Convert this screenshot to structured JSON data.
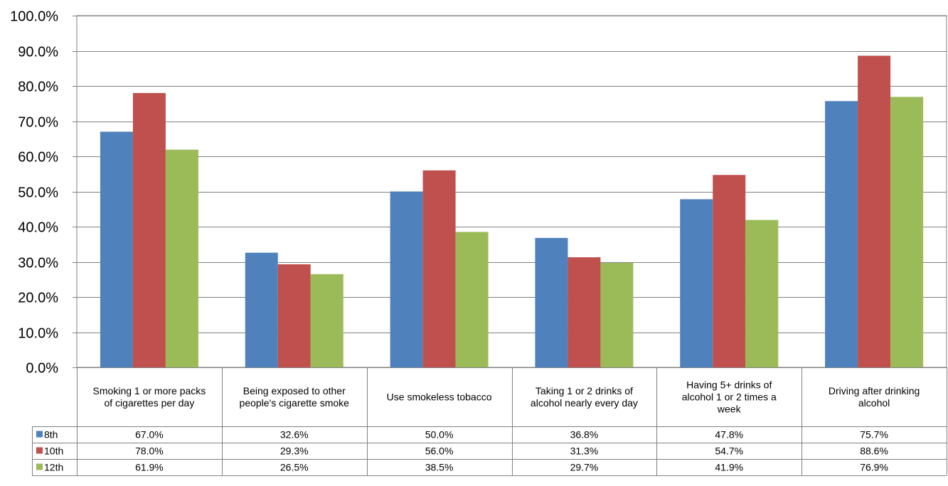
{
  "chart_data": {
    "type": "bar",
    "categories": [
      [
        "Smoking 1 or more packs",
        "of cigarettes per day"
      ],
      [
        "Being exposed to other",
        "people's cigarette smoke"
      ],
      [
        "Use smokeless tobacco"
      ],
      [
        "Taking 1 or 2 drinks of",
        "alcohol nearly every day"
      ],
      [
        "Having 5+ drinks of",
        "alcohol 1 or 2 times a",
        "week"
      ],
      [
        "Driving after drinking",
        "alcohol"
      ]
    ],
    "series": [
      {
        "name": "8th",
        "color": "#4F81BD",
        "values": [
          67.0,
          32.6,
          50.0,
          36.8,
          47.8,
          75.7
        ],
        "labels": [
          "67.0%",
          "32.6%",
          "50.0%",
          "36.8%",
          "47.8%",
          "75.7%"
        ]
      },
      {
        "name": "10th",
        "color": "#C0504D",
        "values": [
          78.0,
          29.3,
          56.0,
          31.3,
          54.7,
          88.6
        ],
        "labels": [
          "78.0%",
          "29.3%",
          "56.0%",
          "31.3%",
          "54.7%",
          "88.6%"
        ]
      },
      {
        "name": "12th",
        "color": "#9BBB59",
        "values": [
          61.9,
          26.5,
          38.5,
          29.7,
          41.9,
          76.9
        ],
        "labels": [
          "61.9%",
          "26.5%",
          "38.5%",
          "29.7%",
          "41.9%",
          "76.9%"
        ]
      }
    ],
    "yticks": [
      "0.0%",
      "10.0%",
      "20.0%",
      "30.0%",
      "40.0%",
      "50.0%",
      "60.0%",
      "70.0%",
      "80.0%",
      "90.0%",
      "100.0%"
    ],
    "ylim": [
      0,
      100
    ],
    "grid": true,
    "legend": "data-table"
  }
}
